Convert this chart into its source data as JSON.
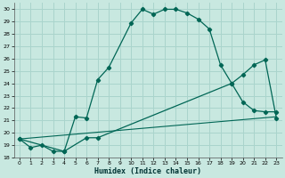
{
  "title": "",
  "xlabel": "Humidex (Indice chaleur)",
  "bg_color": "#c8e8e0",
  "grid_color": "#aad4cc",
  "line_color": "#006655",
  "xlim": [
    -0.5,
    23.5
  ],
  "ylim": [
    18,
    30.5
  ],
  "xticks": [
    0,
    1,
    2,
    3,
    4,
    5,
    6,
    7,
    8,
    9,
    10,
    11,
    12,
    13,
    14,
    15,
    16,
    17,
    18,
    19,
    20,
    21,
    22,
    23
  ],
  "yticks": [
    18,
    19,
    20,
    21,
    22,
    23,
    24,
    25,
    26,
    27,
    28,
    29,
    30
  ],
  "curve1_x": [
    0,
    1,
    2,
    3,
    4,
    5,
    6,
    7,
    8,
    10,
    11,
    12,
    13,
    14,
    15,
    16,
    17,
    18,
    19,
    20,
    21,
    22,
    23
  ],
  "curve1_y": [
    19.5,
    18.8,
    19.0,
    18.5,
    18.5,
    21.3,
    21.2,
    24.3,
    25.3,
    28.9,
    30.0,
    29.6,
    30.0,
    30.0,
    29.7,
    29.2,
    28.4,
    25.5,
    24.0,
    22.5,
    21.8,
    21.7,
    21.7
  ],
  "curve2_x": [
    0,
    4,
    6,
    7,
    19,
    20,
    21,
    22,
    23
  ],
  "curve2_y": [
    19.5,
    18.5,
    19.6,
    19.6,
    24.0,
    24.7,
    25.5,
    25.9,
    21.2
  ],
  "curve3_x": [
    0,
    23
  ],
  "curve3_y": [
    19.5,
    21.3
  ]
}
